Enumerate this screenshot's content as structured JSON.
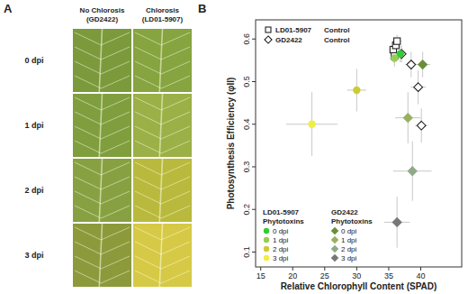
{
  "panel_a": {
    "label": "A",
    "rows": [
      "0 dpi",
      "1 dpi",
      "2 dpi",
      "3 dpi"
    ],
    "columns": [
      {
        "title": "No Chlorosis",
        "subtitle": "(GD2422)",
        "colors": [
          "#7b9a3c",
          "#7f9e3e",
          "#87a142",
          "#8c9a3c"
        ]
      },
      {
        "title": "Chlorosis",
        "subtitle": "(LD01-5907)",
        "colors": [
          "#86a43f",
          "#9bb046",
          "#b9b93d",
          "#d6c945"
        ]
      }
    ]
  },
  "chart_data": {
    "type": "scatter",
    "label": "B",
    "x_label": "Relative Chlorophyll Content (SPAD)",
    "y_label": "Photosynthesis Efficiency (φII)",
    "xlim": [
      14.2,
      46.4
    ],
    "ylim": [
      0.065,
      0.645
    ],
    "xticks": [
      15,
      20,
      25,
      30,
      35,
      40
    ],
    "yticks": [
      0.1,
      0.2,
      0.3,
      0.4,
      0.5,
      0.6
    ],
    "series": [
      {
        "name": "LD01-5907",
        "label": "Control",
        "marker": "square",
        "color": "#ffffff",
        "x": [
          35.7,
          36.1,
          36.3,
          35.9
        ],
        "values": [
          0.575,
          0.585,
          0.595,
          0.56
        ],
        "x_error": [
          0.6,
          0.6,
          0.7,
          0.6
        ],
        "y_error": [
          0.015,
          0.015,
          0.015,
          0.02
        ]
      },
      {
        "name": "GD2422",
        "label": "Control",
        "marker": "diamond",
        "color": "#ffffff",
        "x": [
          37.0,
          38.5,
          39.6,
          40.1
        ],
        "values": [
          0.565,
          0.54,
          0.487,
          0.397
        ],
        "x_error": [
          0.8,
          0.9,
          1.2,
          1.0
        ],
        "y_error": [
          0.02,
          0.03,
          0.04,
          0.04
        ]
      }
    ],
    "phytotoxin_groups": [
      {
        "name": "LD01-5907",
        "label": "Phytotoxins",
        "marker": "circle",
        "series": [
          {
            "name": "0 dpi",
            "color": "#33cc33",
            "x": [
              36.8
            ],
            "values": [
              0.565
            ],
            "x_error": [
              0.7
            ],
            "y_error": [
              0.02
            ]
          },
          {
            "name": "1 dpi",
            "color": "#99cc55",
            "x": [
              35.9
            ],
            "values": [
              0.555
            ],
            "x_error": [
              0.8
            ],
            "y_error": [
              0.02
            ]
          },
          {
            "name": "2 dpi",
            "color": "#cccc33",
            "x": [
              30.0
            ],
            "values": [
              0.48
            ],
            "x_error": [
              1.5
            ],
            "y_error": [
              0.05
            ]
          },
          {
            "name": "3 dpi",
            "color": "#eeee44",
            "x": [
              23.0
            ],
            "values": [
              0.4
            ],
            "x_error": [
              4.0
            ],
            "y_error": [
              0.075
            ]
          }
        ]
      },
      {
        "name": "GD2422",
        "label": "Phytotoxins",
        "marker": "diamond",
        "series": [
          {
            "name": "0 dpi",
            "color": "#6b8e3a",
            "x": [
              40.3
            ],
            "values": [
              0.54
            ],
            "x_error": [
              1.2
            ],
            "y_error": [
              0.03
            ]
          },
          {
            "name": "1 dpi",
            "color": "#99b060",
            "x": [
              38.0
            ],
            "values": [
              0.415
            ],
            "x_error": [
              2.0
            ],
            "y_error": [
              0.06
            ]
          },
          {
            "name": "2 dpi",
            "color": "#8faa88",
            "x": [
              38.7
            ],
            "values": [
              0.29
            ],
            "x_error": [
              3.0
            ],
            "y_error": [
              0.07
            ]
          },
          {
            "name": "3 dpi",
            "color": "#777777",
            "x": [
              36.3
            ],
            "values": [
              0.17
            ],
            "x_error": [
              2.0
            ],
            "y_error": [
              0.06
            ]
          }
        ]
      }
    ]
  }
}
